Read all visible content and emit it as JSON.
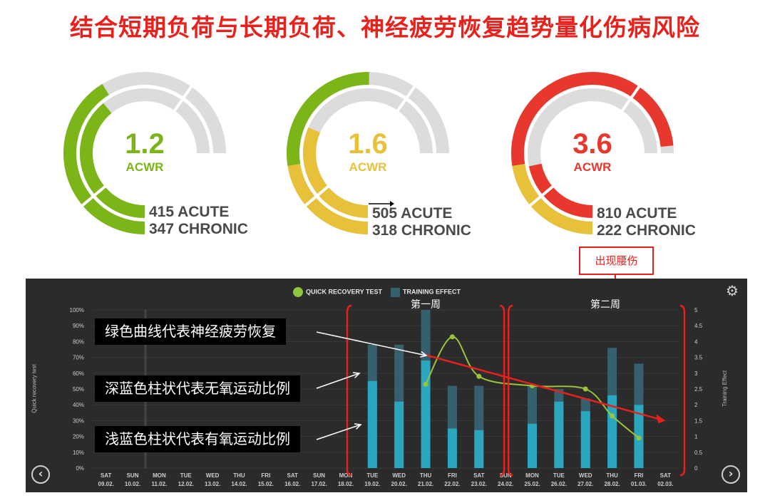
{
  "title": "结合短期负荷与长期负荷、神经疲劳恢复趋势量化伤病风险",
  "gauges": [
    {
      "value": "1.2",
      "label": "ACWR",
      "acute": "415 ACUTE",
      "chronic": "347 CHRONIC",
      "color": "#7cb518",
      "acute_fraction": 0.55,
      "chronic_fraction": 0.52,
      "outer_colors": [
        "#7cb518"
      ],
      "inner_colors": [
        "#7cb518"
      ]
    },
    {
      "value": "1.6",
      "label": "ACWR",
      "acute": "505 ACUTE",
      "chronic": "318 CHRONIC",
      "color": "#e8c13a",
      "acute_fraction": 0.67,
      "chronic_fraction": 0.42,
      "outer_colors": [
        "#e8c13a",
        "#7cb518"
      ],
      "inner_colors": [
        "#e8c13a"
      ]
    },
    {
      "value": "3.6",
      "label": "ACWR",
      "acute": "810 ACUTE",
      "chronic": "222 CHRONIC",
      "color": "#e8382d",
      "acute_fraction": 0.98,
      "chronic_fraction": 0.29,
      "outer_colors": [
        "#e8c13a",
        "#e8382d"
      ],
      "inner_colors": [
        "#e8382d"
      ]
    }
  ],
  "injury_note": "出现腰伤",
  "callouts": {
    "green": "绿色曲线代表神经疲劳恢复",
    "dark": "深蓝色柱状代表无氧运动比例",
    "light": "浅蓝色柱状代表有氧运动比例"
  },
  "weeks": {
    "first": "第一周",
    "second": "第二周"
  },
  "chart_data": {
    "type": "bar",
    "legend": [
      "QUICK RECOVERY TEST",
      "TRAINING EFFECT"
    ],
    "ylabel_left": "Quick recovery test",
    "ylabel_right": "Training Effect",
    "ylim_left": [
      0,
      100
    ],
    "ylim_right": [
      0,
      5
    ],
    "yticks_left": [
      "0%",
      "10%",
      "20%",
      "30%",
      "40%",
      "50%",
      "60%",
      "70%",
      "80%",
      "90%",
      "100%"
    ],
    "yticks_right": [
      "0",
      "0.5",
      "1",
      "1.5",
      "2",
      "2.5",
      "3",
      "3.5",
      "4",
      "4.5",
      "5"
    ],
    "categories": [
      [
        "SAT",
        "09.02."
      ],
      [
        "SUN",
        "10.02."
      ],
      [
        "MON",
        "11.02."
      ],
      [
        "TUE",
        "12.02."
      ],
      [
        "WED",
        "13.02."
      ],
      [
        "THU",
        "14.02."
      ],
      [
        "FRI",
        "15.02."
      ],
      [
        "SAT",
        "16.02."
      ],
      [
        "SUN",
        "17.02."
      ],
      [
        "MON",
        "18.02."
      ],
      [
        "TUE",
        "19.02."
      ],
      [
        "WED",
        "20.02."
      ],
      [
        "THU",
        "21.02."
      ],
      [
        "FRI",
        "22.02."
      ],
      [
        "SAT",
        "23.02."
      ],
      [
        "SUN",
        "24.02."
      ],
      [
        "MON",
        "25.02."
      ],
      [
        "TUE",
        "26.02."
      ],
      [
        "WED",
        "27.02."
      ],
      [
        "THU",
        "28.02."
      ],
      [
        "FRI",
        "01.03."
      ],
      [
        "SAT",
        "02.03."
      ]
    ],
    "series": [
      {
        "name": "TRAINING EFFECT",
        "kind": "dark",
        "values": [
          null,
          null,
          null,
          null,
          null,
          null,
          null,
          null,
          null,
          null,
          3.9,
          3.9,
          5.0,
          2.6,
          2.6,
          null,
          2.6,
          2.5,
          2.2,
          3.8,
          3.3,
          null
        ]
      },
      {
        "kind": "light",
        "values": [
          null,
          null,
          null,
          null,
          null,
          null,
          null,
          null,
          null,
          null,
          2.75,
          2.1,
          3.4,
          1.25,
          1.2,
          null,
          1.4,
          2.1,
          1.8,
          2.3,
          2.0,
          null
        ]
      },
      {
        "name": "QUICK RECOVERY TEST",
        "kind": "line",
        "values": [
          null,
          null,
          null,
          null,
          null,
          null,
          null,
          null,
          null,
          null,
          null,
          null,
          53,
          83,
          58,
          null,
          52,
          null,
          50,
          33,
          19,
          null
        ]
      }
    ],
    "trend_arrow": {
      "from": [
        11.9,
        3.6
      ],
      "to": [
        21.0,
        1.5
      ]
    }
  }
}
